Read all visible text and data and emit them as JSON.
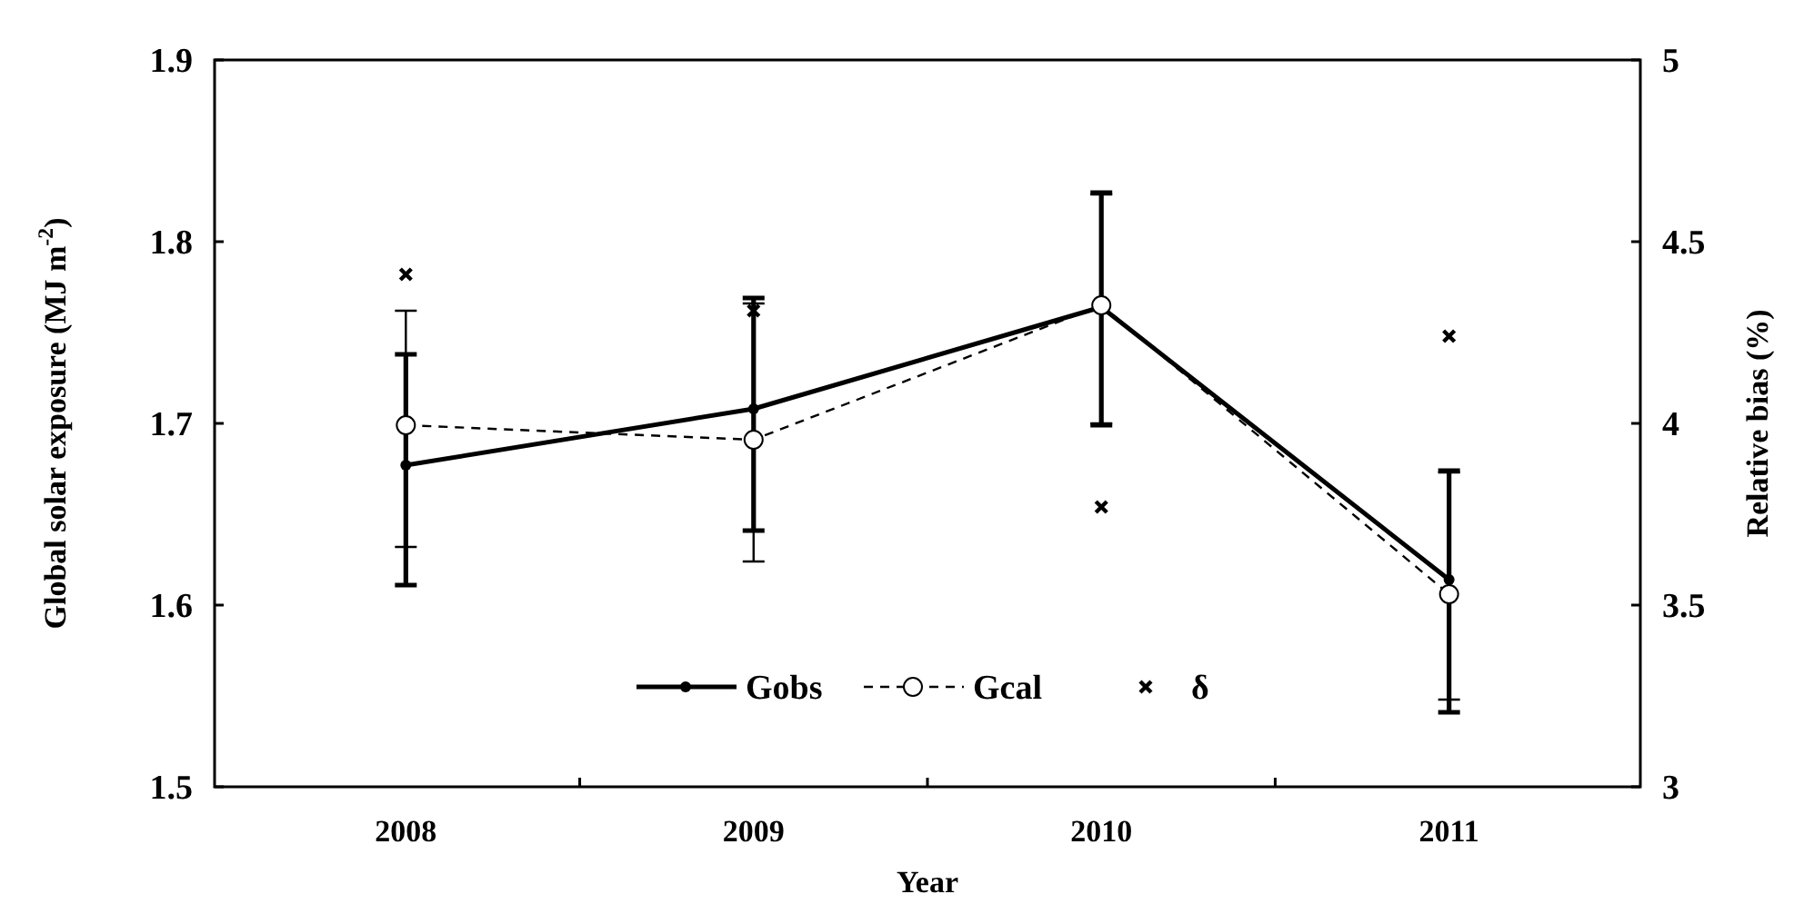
{
  "chart_data": {
    "type": "line",
    "xlabel": "Year",
    "ylabel": "Global solar exposure (MJ m$^{-2}$)",
    "y2label": "Relative bias (%)",
    "categories": [
      "2008",
      "2009",
      "2010",
      "2011"
    ],
    "series": [
      {
        "name": "Gobs",
        "color": "#000000",
        "marker": "circle",
        "line_style": "solid",
        "values": [
          1.677,
          1.708,
          1.764,
          1.614
        ],
        "errors": [
          [
            1.611,
            1.738
          ],
          [
            1.641,
            1.769
          ],
          [
            1.699,
            1.827
          ],
          [
            1.541,
            1.674
          ]
        ]
      },
      {
        "name": "Gcal",
        "color": "#000000",
        "marker": "circle",
        "line_style": "dashed",
        "values": [
          1.699,
          1.691,
          1.765,
          1.606
        ],
        "errors": [
          [
            1.632,
            1.762
          ],
          [
            1.624,
            1.766
          ],
          [
            1.7,
            1.826
          ],
          [
            1.548,
            1.673
          ]
        ]
      },
      {
        "name": "δ",
        "color": "#000000",
        "type": "scatter",
        "marker": "cross",
        "axis": "y2",
        "values": [
          4.41,
          4.31,
          3.77,
          4.24
        ]
      }
    ],
    "ylim": [
      1.5,
      1.9
    ],
    "yticks": [
      1.5,
      1.6,
      1.7,
      1.8,
      1.9
    ],
    "y2lim": [
      3,
      5
    ],
    "y2ticks": [
      3,
      {
        "value": 3.5,
        "label": "3.5"
      },
      4,
      {
        "value": 4.5,
        "label": "4.5"
      },
      5
    ],
    "legend": "bottom",
    "grid": false
  }
}
